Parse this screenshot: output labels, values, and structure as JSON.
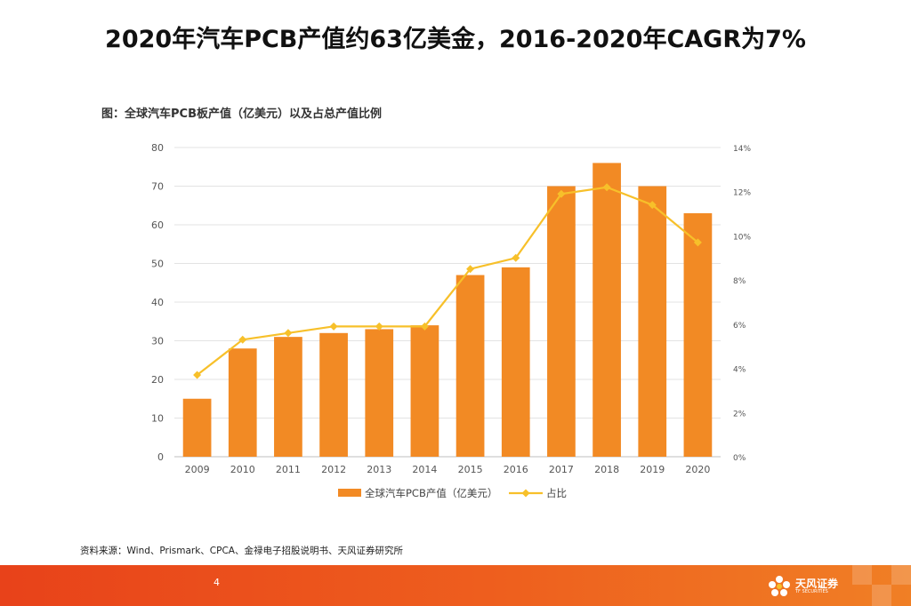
{
  "header": {
    "title": "2020年汽车PCB产值约63亿美金，2016-2020年CAGR为7%"
  },
  "figure": {
    "subtitle": "图：全球汽车PCB板产值（亿美元）以及占总产值比例"
  },
  "chart_data": {
    "type": "bar",
    "title": "",
    "categories": [
      "2009",
      "2010",
      "2011",
      "2012",
      "2013",
      "2014",
      "2015",
      "2016",
      "2017",
      "2018",
      "2019",
      "2020"
    ],
    "series": [
      {
        "name": "全球汽车PCB产值（亿美元）",
        "type": "bar",
        "axis": "left",
        "color": "#f28a24",
        "values": [
          15,
          28,
          31,
          32,
          33,
          34,
          47,
          49,
          70,
          76,
          70,
          63
        ]
      },
      {
        "name": "占比",
        "type": "line",
        "axis": "right",
        "color": "#f7c02a",
        "values": [
          3.7,
          5.3,
          5.6,
          5.9,
          5.9,
          5.9,
          8.5,
          9.0,
          11.9,
          12.2,
          11.4,
          9.7
        ]
      }
    ],
    "y_left": {
      "min": 0,
      "max": 80,
      "ticks": [
        0,
        10,
        20,
        30,
        40,
        50,
        60,
        70,
        80
      ]
    },
    "y_right": {
      "min": 0,
      "max": 14,
      "ticks": [
        0,
        2,
        4,
        6,
        8,
        10,
        12,
        14
      ],
      "tick_labels": [
        "0%",
        "2%",
        "4%",
        "6%",
        "8%",
        "10%",
        "12%",
        "14%"
      ]
    },
    "grid": true,
    "legend": "bottom-center"
  },
  "source": {
    "text": "资料来源：Wind、Prismark、CPCA、金禄电子招股说明书、天风证券研究所"
  },
  "footer": {
    "page_number": "4",
    "logo_text": "天风证券",
    "logo_sub": "TF SECURITIES"
  }
}
